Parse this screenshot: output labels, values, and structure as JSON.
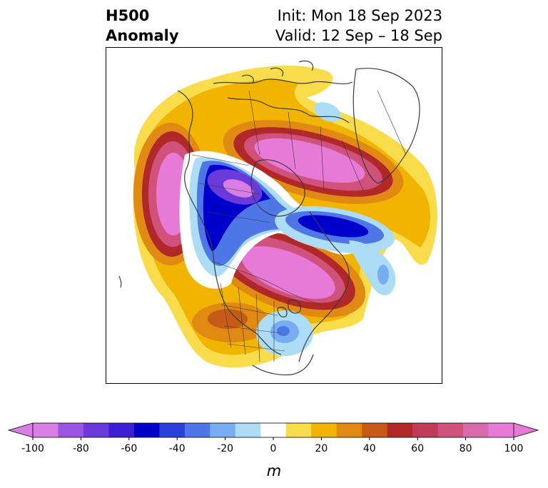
{
  "title": {
    "left_line1": "H500",
    "left_line2": "Anomaly",
    "right_line1": "Init: Mon 18 Sep 2023",
    "right_line2": "Valid: 12 Sep – 18 Sep"
  },
  "colorbar": {
    "label": "m",
    "levels": [
      -100,
      -90,
      -80,
      -70,
      -60,
      -50,
      -40,
      -30,
      -20,
      -10,
      10,
      20,
      30,
      40,
      50,
      60,
      70,
      80,
      90,
      100
    ],
    "tick_labels": [
      "-100",
      "-80",
      "-60",
      "-40",
      "-20",
      "0",
      "20",
      "40",
      "60",
      "80",
      "100"
    ],
    "colors": [
      "#d87ee4",
      "#9c55e2",
      "#6a3ad8",
      "#3f1fd4",
      "#0000cc",
      "#2a40dc",
      "#4f76e6",
      "#79adf2",
      "#addcf7",
      "#ffffff",
      "#f9dc4c",
      "#f1b400",
      "#e08a14",
      "#c85a18",
      "#b02828",
      "#bf3c58",
      "#d0527c",
      "#d96aae",
      "#e67ad6"
    ]
  },
  "map": {
    "projection": "polar-stereographic",
    "region": "North America",
    "anomaly_features": [
      {
        "name": "positive-anomaly-gulf-of-alaska",
        "sign": "positive",
        "peak_m": 100
      },
      {
        "name": "negative-anomaly-western-canada",
        "sign": "negative",
        "peak_m": -90
      },
      {
        "name": "positive-anomaly-greenland",
        "sign": "positive",
        "peak_m": 100
      },
      {
        "name": "negative-anomaly-hudson-bay",
        "sign": "negative",
        "peak_m": -70
      },
      {
        "name": "positive-anomaly-central-canada",
        "sign": "positive",
        "peak_m": 100
      },
      {
        "name": "negative-anomaly-us-east",
        "sign": "negative",
        "peak_m": -40
      },
      {
        "name": "negative-anomaly-north-atlantic",
        "sign": "negative",
        "peak_m": -30
      },
      {
        "name": "negative-anomaly-arctic",
        "sign": "negative",
        "peak_m": -20
      }
    ]
  }
}
